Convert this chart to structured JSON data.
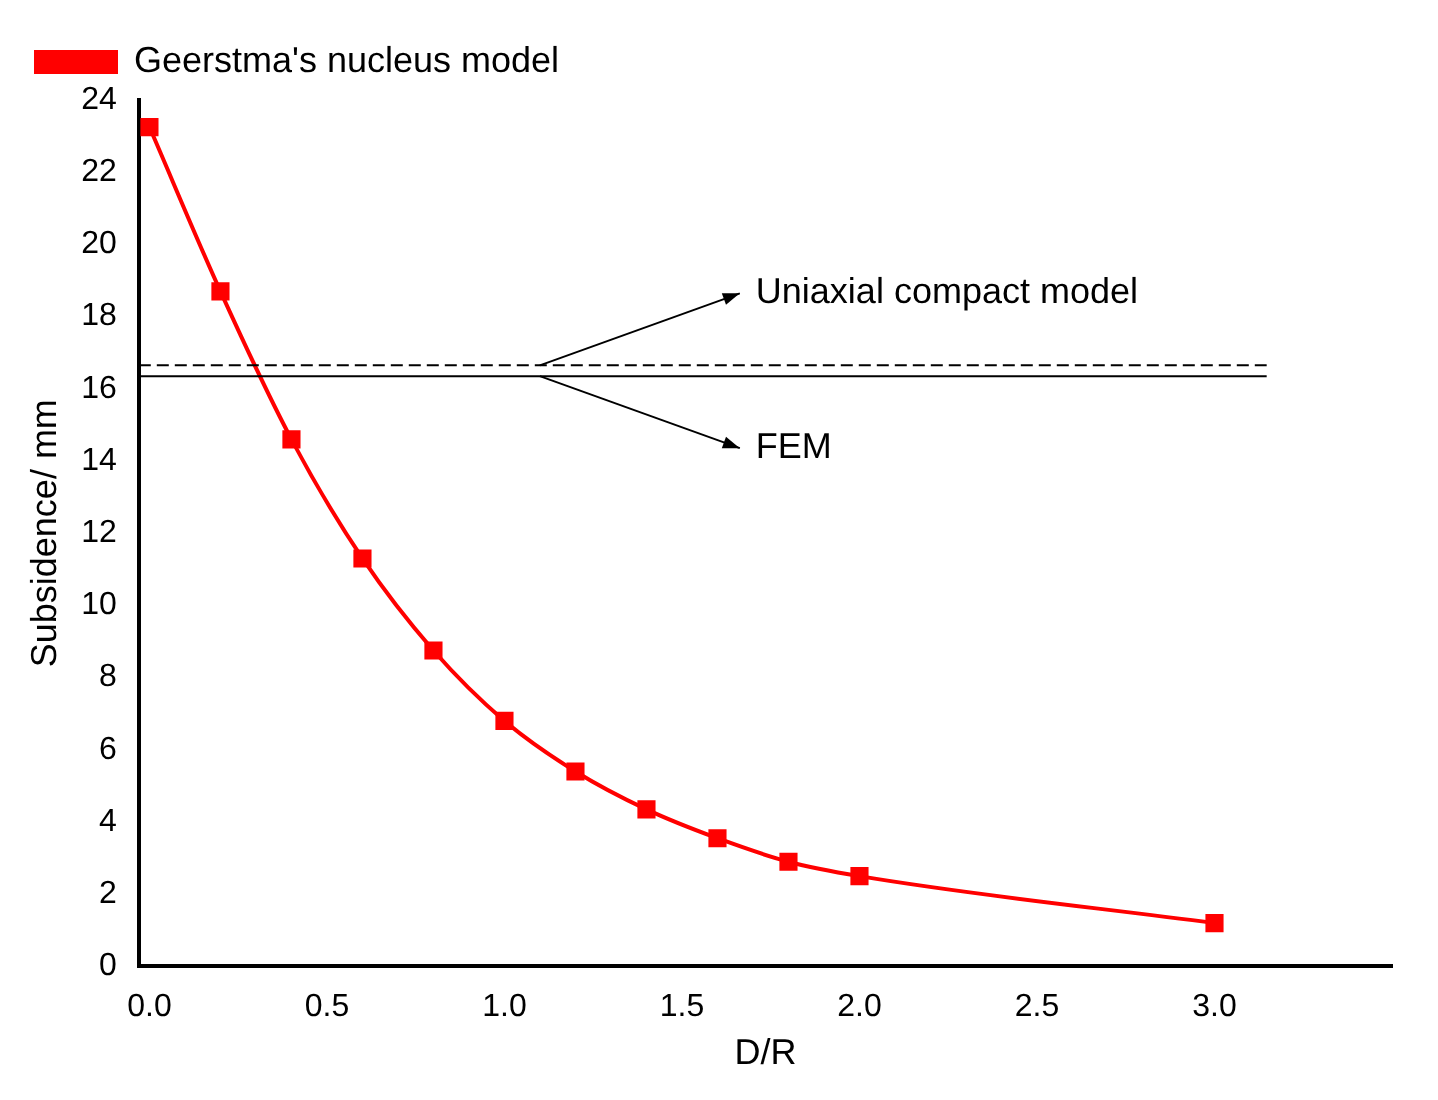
{
  "chart_data": {
    "type": "line",
    "xlabel": "D/R",
    "ylabel": "Subsidence/ mm",
    "x": [
      0,
      0.2,
      0.4,
      0.6,
      0.8,
      1.0,
      1.2,
      1.4,
      1.6,
      1.8,
      2.0,
      3.0
    ],
    "series": [
      {
        "name": "Geerstma's nucleus model",
        "color": "#ff0000",
        "values": [
          23.25,
          18.7,
          14.6,
          11.3,
          8.75,
          6.8,
          5.4,
          4.35,
          3.55,
          2.9,
          2.5,
          1.2
        ]
      }
    ],
    "xlim": [
      -0.03,
      3.5
    ],
    "xticks": [
      {
        "value": 0,
        "label": "0.0"
      },
      0.5,
      {
        "value": 1,
        "label": "1.0"
      },
      1.5,
      {
        "value": 2,
        "label": "2.0"
      },
      2.5,
      {
        "value": 3,
        "label": "3.0"
      }
    ],
    "ylim": [
      0,
      24
    ],
    "yticks": [
      0,
      2,
      4,
      6,
      8,
      10,
      12,
      14,
      16,
      18,
      20,
      22,
      24
    ],
    "ref_lines": [
      {
        "axis": "y",
        "value": 16.65,
        "label": "Uniaxial compact model",
        "color": "#000000",
        "line_style": "dashed"
      },
      {
        "axis": "y",
        "value": 16.35,
        "label": "FEM",
        "color": "#000000",
        "line_style": "solid"
      }
    ],
    "marker": "square",
    "line_style": "solid",
    "legend": "top left",
    "grid": false
  }
}
